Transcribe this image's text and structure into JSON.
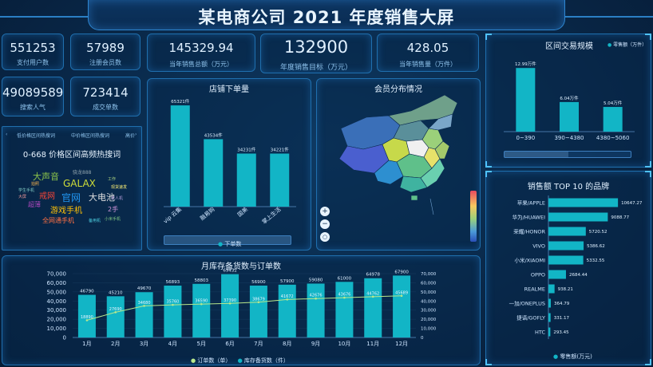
{
  "header": {
    "title": "某电商公司 2021 年度销售大屏"
  },
  "left_stats": [
    {
      "value": "551253",
      "label": "支付用户数"
    },
    {
      "value": "57989",
      "label": "注册会员数"
    },
    {
      "value": "49089589",
      "label": "搜索人气"
    },
    {
      "value": "723414",
      "label": "成交单数"
    }
  ],
  "center_stats": [
    {
      "value": "145329.94",
      "label": "当年销售总额（万元）"
    },
    {
      "value": "132900",
      "label": "年度销售目标（万元）"
    },
    {
      "value": "428.05",
      "label": "当年销售量（万件）"
    }
  ],
  "hot_words": {
    "tabs": [
      "低价格区间热搜词",
      "中价格区间热搜词",
      "高价"
    ],
    "title": "0-668 价格区间高频热搜词",
    "words": [
      {
        "text": "大声音",
        "color": "#8bc34a"
      },
      {
        "text": "GALAX",
        "color": "#cddc39"
      },
      {
        "text": "官网",
        "color": "#2196f3"
      },
      {
        "text": "大电池",
        "color": "#e0e0e0"
      },
      {
        "text": "戒网",
        "color": "#f44336"
      },
      {
        "text": "游戏手机",
        "color": "#ffc107"
      },
      {
        "text": "全网通手机",
        "color": "#ff7043"
      },
      {
        "text": "超薄",
        "color": "#ab47bc"
      },
      {
        "text": "2手",
        "color": "#ce93d8"
      },
      {
        "text": "骁龙888",
        "color": "#90a4ae"
      },
      {
        "text": "工作",
        "color": "#aed581"
      },
      {
        "text": "拍照",
        "color": "#ffb74d"
      },
      {
        "text": "备用机",
        "color": "#4dd0e1"
      },
      {
        "text": "大屏",
        "color": "#ef9a9a"
      },
      {
        "text": "现货速发",
        "color": "#fff176"
      },
      {
        "text": "学生手机",
        "color": "#80cbc4"
      },
      {
        "text": "老人机",
        "color": "#b39ddb"
      },
      {
        "text": "小米手机",
        "color": "#81c784"
      }
    ]
  },
  "store_panel": {
    "title": "店铺下单量"
  },
  "member_panel": {
    "title": "会员分布情况"
  },
  "range_panel": {
    "title": "区间交易规模",
    "legend": "零售额（万件）"
  },
  "top10_panel": {
    "title": "销售额 TOP 10 的品牌",
    "legend": "零售额(万元)"
  },
  "inventory_panel": {
    "title": "月库存备货数与订单数"
  },
  "store_chart": {
    "type": "bar",
    "categories": [
      "vip 云集",
      "融易购",
      "国美",
      "掌上生活"
    ],
    "values": [
      65321,
      43534,
      34231,
      34221
    ],
    "data_labels": [
      "65321件",
      "43534件",
      "34231件",
      "34221件"
    ],
    "legend": "下单数",
    "ylim": [
      0,
      70000
    ],
    "color": "#12b5c6"
  },
  "range_chart": {
    "type": "bar",
    "categories": [
      "0~390",
      "390~4380",
      "4380~5060"
    ],
    "values": [
      12.99,
      6.04,
      5.04
    ],
    "data_labels": [
      "12.99万件",
      "6.04万件",
      "5.04万件"
    ],
    "ylim": [
      0,
      14
    ],
    "color": "#12b5c6"
  },
  "top10_chart": {
    "type": "bar",
    "categories": [
      "苹果/APPLE",
      "华为/HUAWEI",
      "荣耀/HONOR",
      "VIVO",
      "小米/XIAOMI",
      "OPPO",
      "REALME",
      "一加/ONEPLUS",
      "捷语/GOFLY",
      "HTC"
    ],
    "values": [
      10647.27,
      9088.77,
      5720.52,
      5386.62,
      5332.55,
      2684.44,
      938.21,
      364.79,
      331.17,
      293.45
    ],
    "data_labels": [
      "10647.27",
      "9088.77",
      "5720.52",
      "5386.62",
      "5332.55",
      "2684.44",
      "938.21",
      "364.79",
      "331.17",
      "293.45"
    ],
    "xlim": [
      0,
      11000
    ],
    "color": "#12b5c6"
  },
  "inventory_chart": {
    "type": "bar",
    "categories": [
      "1月",
      "2月",
      "3月",
      "4月",
      "5月",
      "6月",
      "7月",
      "8月",
      "9月",
      "10月",
      "11月",
      "12月"
    ],
    "series": [
      {
        "name": "订单数（单）",
        "type": "line",
        "values": [
          18890,
          27690,
          34680,
          35760,
          36590,
          37390,
          38679,
          41672,
          42676,
          43676,
          44762,
          45689
        ],
        "labels": [
          "18890",
          "27690",
          "34680",
          "35760",
          "36590",
          "37390",
          "38679",
          "41672",
          "42676",
          "43676",
          "44762",
          "45689"
        ]
      },
      {
        "name": "库存备货数（件）",
        "type": "bar",
        "values": [
          46790,
          45210,
          49670,
          56893,
          58803,
          69432,
          56900,
          57900,
          59080,
          61000,
          64978,
          67900
        ],
        "labels": [
          "46790",
          "45210",
          "49670",
          "56893",
          "58803",
          "69432",
          "56900",
          "57900",
          "59080",
          "61000",
          "64978",
          "67900"
        ]
      }
    ],
    "ylim": [
      0,
      70000
    ],
    "y_ticks": [
      "70,000",
      "60,000",
      "50,000",
      "40,000",
      "30,000",
      "20,000",
      "10,000",
      "0"
    ],
    "y2_ticks": [
      "70,000",
      "60,000",
      "50,000",
      "40,000",
      "30,000",
      "20,000",
      "10,000",
      "0"
    ],
    "colors": {
      "bar": "#12b5c6",
      "line": "#b9e88c"
    }
  },
  "map_controls": [
    "+",
    "−",
    "○"
  ]
}
